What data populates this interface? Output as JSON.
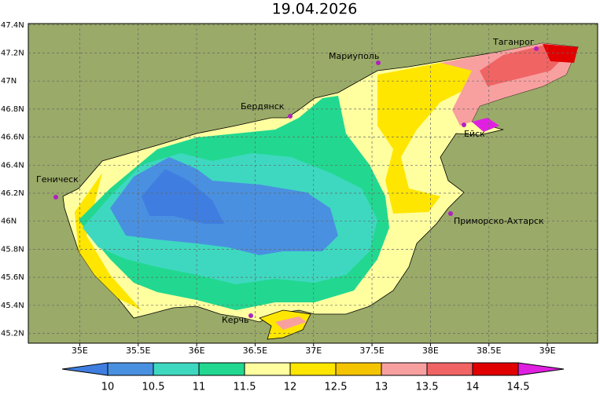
{
  "title": "19.04.2026",
  "map": {
    "lonlim": [
      34.56,
      39.43
    ],
    "latlim": [
      45.13,
      47.41
    ],
    "grid": true,
    "xticks": [
      {
        "value": 35,
        "label": "35E"
      },
      {
        "value": 35.5,
        "label": "35.5E"
      },
      {
        "value": 36,
        "label": "36E"
      },
      {
        "value": 36.5,
        "label": "36.5E"
      },
      {
        "value": 37,
        "label": "37E"
      },
      {
        "value": 37.5,
        "label": "37.5E"
      },
      {
        "value": 38,
        "label": "38E"
      },
      {
        "value": 38.5,
        "label": "38.5E"
      },
      {
        "value": 39,
        "label": "39E"
      }
    ],
    "yticks": [
      {
        "value": 47.4,
        "label": "47.4N"
      },
      {
        "value": 47.2,
        "label": "47.2N"
      },
      {
        "value": 47,
        "label": "47N"
      },
      {
        "value": 46.8,
        "label": "46.8N"
      },
      {
        "value": 46.6,
        "label": "46.6N"
      },
      {
        "value": 46.4,
        "label": "46.4N"
      },
      {
        "value": 46.2,
        "label": "46.2N"
      },
      {
        "value": 46,
        "label": "46N"
      },
      {
        "value": 45.8,
        "label": "45.8N"
      },
      {
        "value": 45.6,
        "label": "45.6N"
      },
      {
        "value": 45.4,
        "label": "45.4N"
      },
      {
        "value": 45.2,
        "label": "45.2N"
      }
    ]
  },
  "cities": [
    "Геническ",
    "Бердянск",
    "Мариуполь",
    "Таганрог",
    "Ейск",
    "Приморско-Ахтарск",
    "Керчь"
  ],
  "colorbar": {
    "ticks": [
      10,
      10.5,
      11,
      11.5,
      12,
      12.5,
      13,
      13.5,
      14,
      14.5
    ],
    "colors": [
      "#3f7ee0",
      "#4a90e0",
      "#3ed8c0",
      "#22d890",
      "#ffffa0",
      "#ffe600",
      "#f5c400",
      "#f8a0a0",
      "#f06464",
      "#e00000",
      "#e020e0"
    ]
  }
}
